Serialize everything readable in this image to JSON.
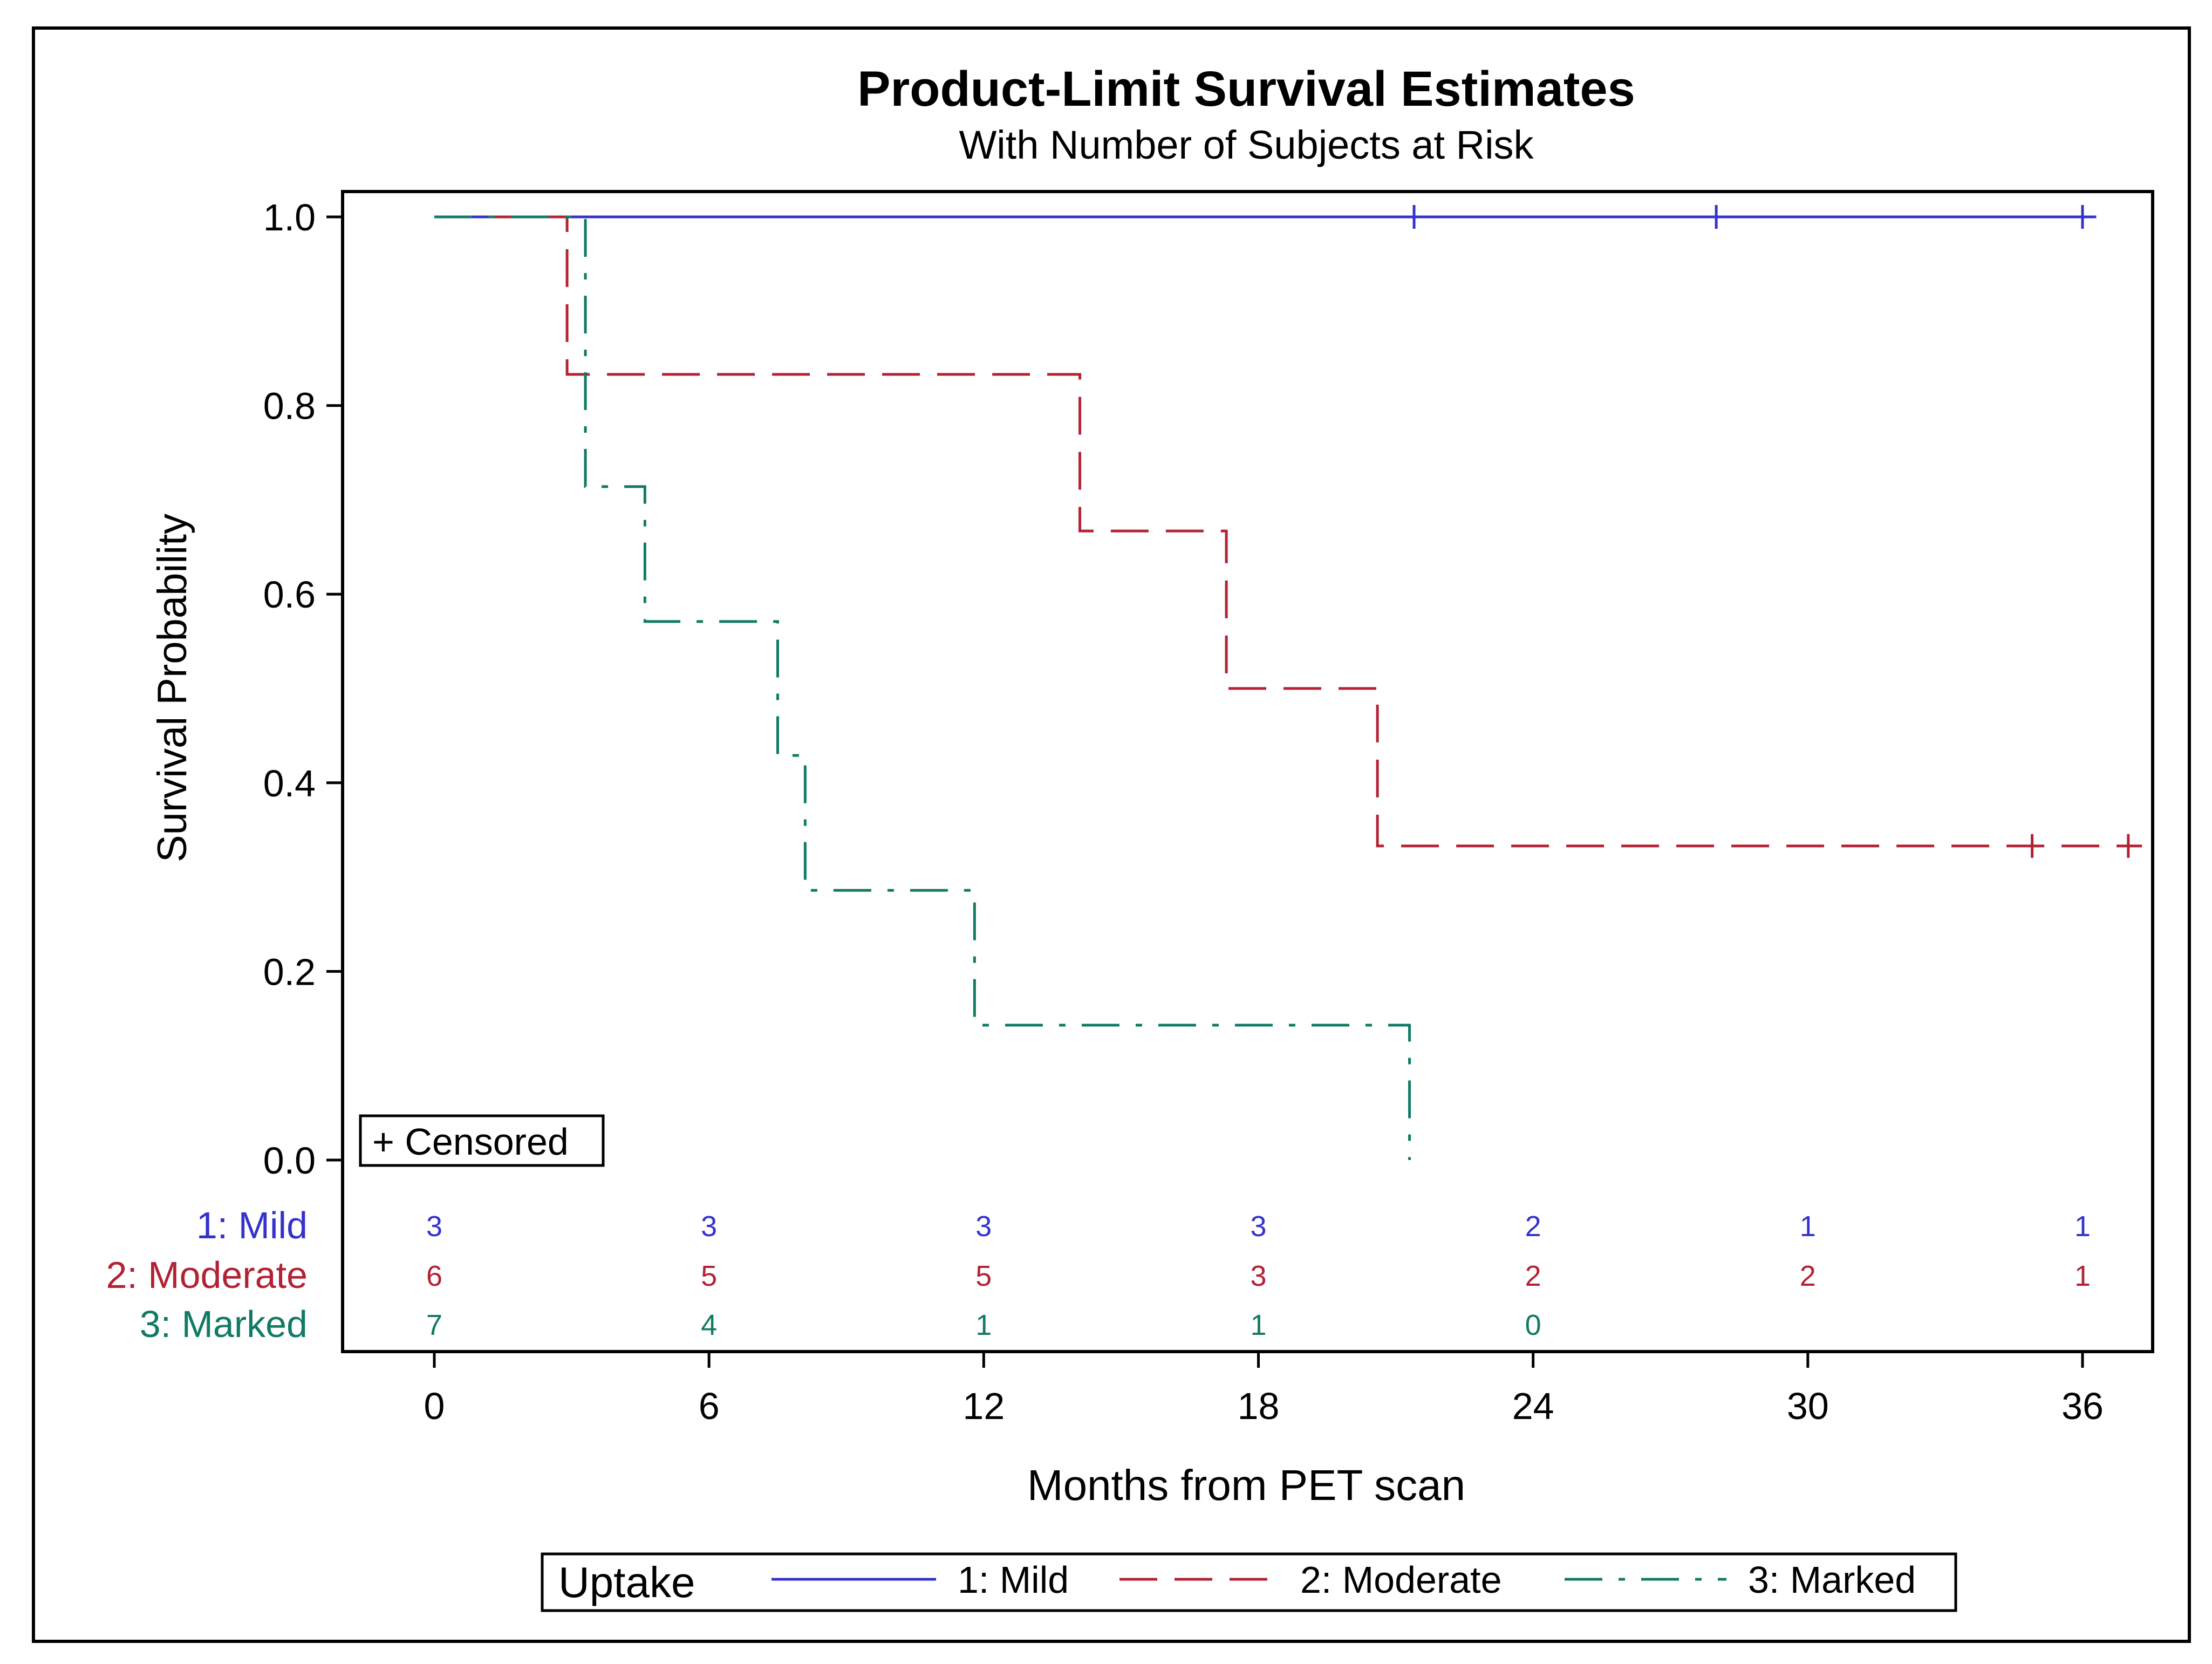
{
  "chart_data": {
    "type": "line",
    "title": "Product-Limit Survival Estimates",
    "subtitle": "With Number of Subjects at Risk",
    "xlabel": "Months from PET scan",
    "ylabel": "Survival Probability",
    "xlim": [
      -2.6,
      37.7
    ],
    "ylim": [
      0,
      1.0
    ],
    "x_ticks": [
      0,
      6,
      12,
      18,
      24,
      30,
      36
    ],
    "x_tick_labels": [
      "0",
      "6",
      "12",
      "18",
      "24",
      "30",
      "36"
    ],
    "y_ticks": [
      0,
      0.2,
      0.4,
      0.6,
      0.8,
      1.0
    ],
    "y_tick_labels": [
      "0.0",
      "0.2",
      "0.4",
      "0.6",
      "0.8",
      "1.0"
    ],
    "grid": false,
    "censored_legend": "+ Censored",
    "legend": {
      "title": "Uptake",
      "position": "bottom",
      "entries": [
        "1: Mild",
        "2: Moderate",
        "3: Marked"
      ]
    },
    "series": [
      {
        "name": "1: Mild",
        "color": "#3333cc",
        "dash": "solid",
        "steps": [
          [
            0,
            1.0
          ],
          [
            36.3,
            1.0
          ]
        ],
        "censored": [
          [
            21.4,
            1.0
          ],
          [
            28.0,
            1.0
          ],
          [
            36.0,
            1.0
          ]
        ],
        "at_risk": [
          "3",
          "3",
          "3",
          "3",
          "2",
          "1",
          "1"
        ]
      },
      {
        "name": "2: Moderate",
        "color": "#b22234",
        "dash": "dashed",
        "steps": [
          [
            0,
            1.0
          ],
          [
            2.9,
            0.833
          ],
          [
            14.1,
            0.667
          ],
          [
            17.3,
            0.5
          ],
          [
            20.6,
            0.333
          ],
          [
            37.3,
            0.333
          ]
        ],
        "censored": [
          [
            34.9,
            0.333
          ],
          [
            37.0,
            0.333
          ]
        ],
        "at_risk": [
          "6",
          "5",
          "5",
          "3",
          "2",
          "2",
          "1"
        ]
      },
      {
        "name": "3: Marked",
        "color": "#117a65",
        "dash": "dashdot",
        "steps": [
          [
            0,
            1.0
          ],
          [
            3.3,
            0.714
          ],
          [
            4.6,
            0.571
          ],
          [
            7.5,
            0.429
          ],
          [
            8.1,
            0.286
          ],
          [
            11.8,
            0.143
          ],
          [
            21.3,
            0.0
          ]
        ],
        "censored": [],
        "at_risk": [
          "7",
          "4",
          "1",
          "1",
          "0"
        ]
      }
    ]
  }
}
